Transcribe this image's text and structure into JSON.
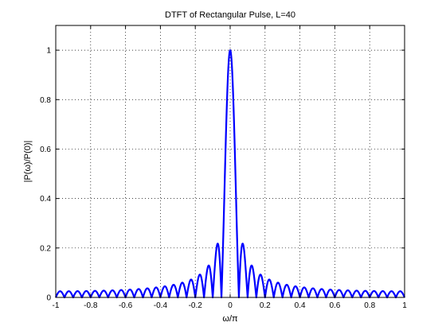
{
  "chart_data": {
    "type": "line",
    "title": "DTFT of Rectangular Pulse, L=40",
    "xlabel": "ω/π",
    "ylabel": "|P(ω)/P(0)|",
    "xlim": [
      -1,
      1
    ],
    "ylim": [
      0,
      1.1
    ],
    "xticks": [
      -1,
      -0.8,
      -0.6,
      -0.4,
      -0.2,
      0,
      0.2,
      0.4,
      0.6,
      0.8,
      1
    ],
    "xtick_labels": [
      "-1",
      "-0.8",
      "-0.6",
      "-0.4",
      "-0.2",
      "0",
      "0.2",
      "0.4",
      "0.6",
      "0.8",
      "1"
    ],
    "yticks": [
      0,
      0.2,
      0.4,
      0.6,
      0.8,
      1
    ],
    "ytick_labels": [
      "0",
      "0.2",
      "0.4",
      "0.6",
      "0.8",
      "1"
    ],
    "grid": true,
    "grid_style": "dotted",
    "series": [
      {
        "color": "#0000ff",
        "L": 40,
        "x_range": [
          -1,
          1
        ],
        "function": "|sin(20πx)/(40 sin(πx/2))|"
      }
    ]
  }
}
